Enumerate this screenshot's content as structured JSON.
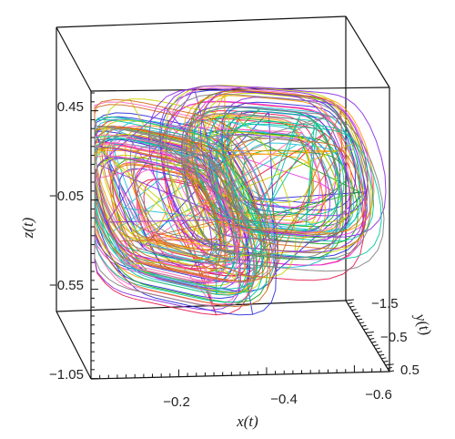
{
  "chart_data": {
    "type": "line",
    "projection": "3d",
    "title": "",
    "xlabel": "x(t)",
    "ylabel": "y(t)",
    "zlabel": "z(t)",
    "x_ticks": [
      "−0.2",
      "−0.4",
      "−0.6"
    ],
    "y_ticks": [
      "−1.5",
      "−0.5",
      "0.5"
    ],
    "z_ticks": [
      "0.45",
      "−0.05",
      "−0.55",
      "−1.05"
    ],
    "xlim": [
      0,
      -0.65
    ],
    "ylim": [
      -1.6,
      0.6
    ],
    "zlim": [
      -1.1,
      0.85
    ],
    "grid": false,
    "legend": "none",
    "box": true,
    "series_colors": [
      "#e6194b",
      "#f032e6",
      "#2b2bd9",
      "#13a813",
      "#1fbfd6",
      "#ff9900",
      "#c8d400",
      "#8a2be2",
      "#ff69b4",
      "#00c8a0",
      "#d2691e",
      "#7f7f7f"
    ],
    "trajectory": {
      "description_free": true,
      "x_center": -0.33,
      "y_center": -0.5,
      "z_center": -0.12,
      "x_amplitude": 0.22,
      "z_amplitude": 0.55,
      "loops_per_series": 9
    }
  }
}
